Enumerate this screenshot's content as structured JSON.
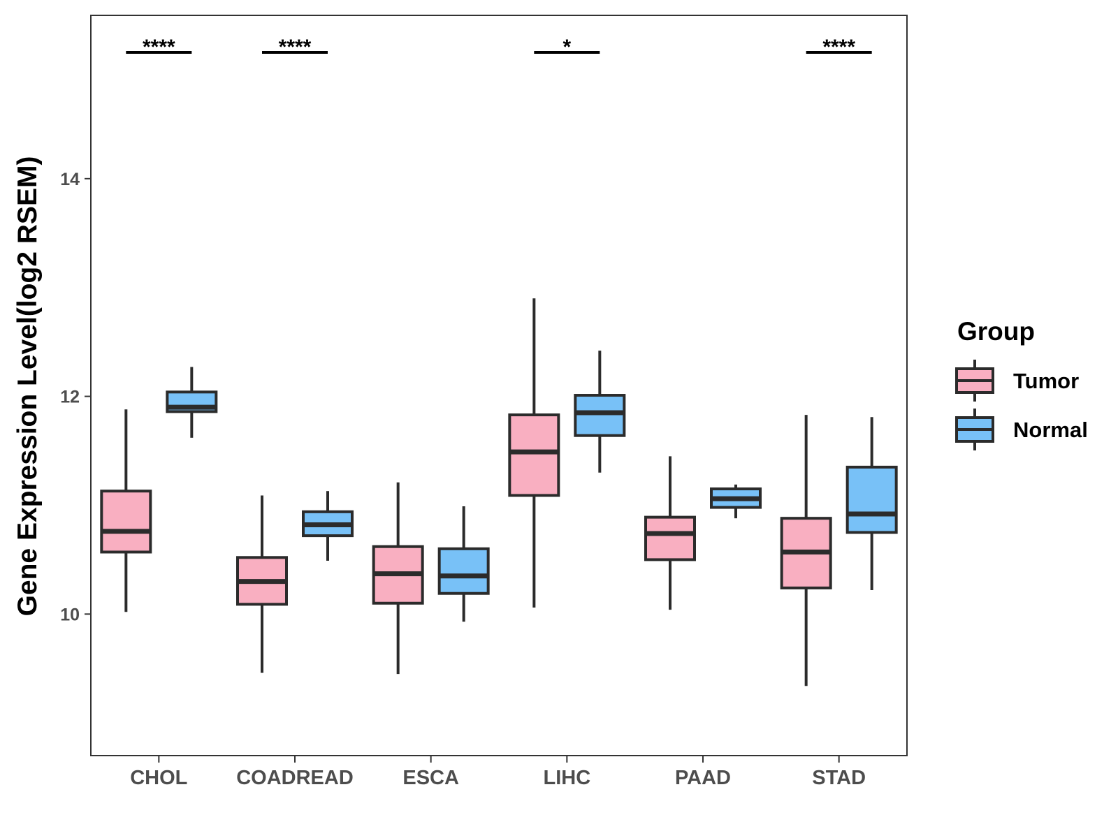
{
  "chart_data": {
    "type": "boxplot",
    "title": "",
    "xlabel": "",
    "ylabel": "Gene Expression Level(log2 RSEM)",
    "ylim": [
      8.7,
      15.5
    ],
    "yticks": [
      10,
      12,
      14
    ],
    "grid": false,
    "categories": [
      "CHOL",
      "COADREAD",
      "ESCA",
      "LIHC",
      "PAAD",
      "STAD"
    ],
    "legend": {
      "title": "Group",
      "position": "right",
      "entries": [
        {
          "name": "Tumor",
          "color": "#F9AFC1"
        },
        {
          "name": "Normal",
          "color": "#78C1F7"
        }
      ]
    },
    "series": [
      {
        "name": "Tumor",
        "color": "#F9AFC1",
        "boxes": [
          {
            "min": 10.02,
            "q1": 10.57,
            "median": 10.76,
            "q3": 11.13,
            "max": 11.88
          },
          {
            "min": 9.46,
            "q1": 10.09,
            "median": 10.3,
            "q3": 10.52,
            "max": 11.09
          },
          {
            "min": 9.45,
            "q1": 10.1,
            "median": 10.37,
            "q3": 10.62,
            "max": 11.21
          },
          {
            "min": 10.06,
            "q1": 11.09,
            "median": 11.49,
            "q3": 11.83,
            "max": 12.9
          },
          {
            "min": 10.04,
            "q1": 10.5,
            "median": 10.74,
            "q3": 10.89,
            "max": 11.45
          },
          {
            "min": 9.34,
            "q1": 10.24,
            "median": 10.57,
            "q3": 10.88,
            "max": 11.83
          }
        ]
      },
      {
        "name": "Normal",
        "color": "#78C1F7",
        "boxes": [
          {
            "min": 11.62,
            "q1": 11.86,
            "median": 11.9,
            "q3": 12.04,
            "max": 12.27
          },
          {
            "min": 10.49,
            "q1": 10.72,
            "median": 10.82,
            "q3": 10.94,
            "max": 11.13
          },
          {
            "min": 9.93,
            "q1": 10.19,
            "median": 10.35,
            "q3": 10.6,
            "max": 10.99
          },
          {
            "min": 11.3,
            "q1": 11.64,
            "median": 11.85,
            "q3": 12.01,
            "max": 12.42
          },
          {
            "min": 10.88,
            "q1": 10.98,
            "median": 11.06,
            "q3": 11.15,
            "max": 11.19
          },
          {
            "min": 10.22,
            "q1": 10.75,
            "median": 10.92,
            "q3": 11.35,
            "max": 11.81
          }
        ]
      }
    ],
    "annotations": [
      {
        "category": "CHOL",
        "label": "****"
      },
      {
        "category": "COADREAD",
        "label": "****"
      },
      {
        "category": "LIHC",
        "label": "*"
      },
      {
        "category": "STAD",
        "label": "****"
      }
    ]
  }
}
